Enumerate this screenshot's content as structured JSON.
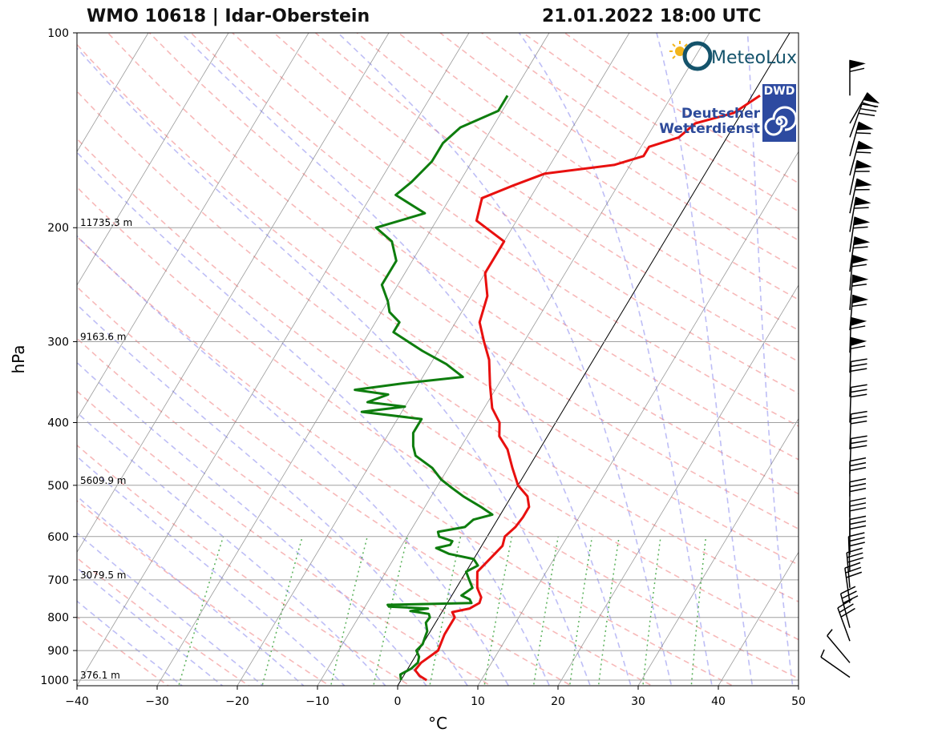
{
  "header": {
    "title_left": "WMO 10618 | Idar-Oberstein",
    "title_right": "21.01.2022 18:00 UTC"
  },
  "logos": {
    "meteolux": "MeteoLux",
    "dwd_abbr": "DWD",
    "dwd_line1": "Deutscher",
    "dwd_line2": "Wetterdienst"
  },
  "colors": {
    "temperature": "#e8100f",
    "dewpoint": "#0e7d0e",
    "dry_adiabat": "#f08080",
    "moist_adiabat": "#8888ee",
    "mixing_ratio": "#2f9e2f",
    "isotherm": "#707070",
    "isobar": "#a0a0a0"
  },
  "chart_data": {
    "type": "line",
    "subtype": "skew-t log-p",
    "xlabel": "°C",
    "ylabel": "hPa",
    "xlim": [
      -40,
      50
    ],
    "ylim": [
      1020,
      100
    ],
    "y_scale": "log",
    "xticks": [
      "−40",
      "−30",
      "−20",
      "−10",
      "0",
      "10",
      "20",
      "30",
      "40",
      "50"
    ],
    "yticks": [
      "100",
      "200",
      "300",
      "400",
      "500",
      "600",
      "700",
      "800",
      "900",
      "1000"
    ],
    "height_labels": [
      {
        "p": 200,
        "text": "11735.3 m"
      },
      {
        "p": 300,
        "text": "9163.6 m"
      },
      {
        "p": 500,
        "text": "5609.9 m"
      },
      {
        "p": 700,
        "text": "3079.5 m"
      },
      {
        "p": 1000,
        "text": "376.1 m"
      }
    ],
    "series": [
      {
        "key": "temperature",
        "points": [
          [
            1000,
            3.2
          ],
          [
            985,
            2.0
          ],
          [
            965,
            1.0
          ],
          [
            940,
            1.2
          ],
          [
            900,
            2.4
          ],
          [
            850,
            2.0
          ],
          [
            800,
            2.0
          ],
          [
            785,
            1.3
          ],
          [
            775,
            3.2
          ],
          [
            760,
            4.0
          ],
          [
            745,
            3.8
          ],
          [
            720,
            2.6
          ],
          [
            700,
            2.0
          ],
          [
            680,
            1.4
          ],
          [
            660,
            1.8
          ],
          [
            640,
            2.2
          ],
          [
            620,
            2.6
          ],
          [
            600,
            2.2
          ],
          [
            580,
            2.8
          ],
          [
            560,
            3.0
          ],
          [
            540,
            3.0
          ],
          [
            520,
            2.0
          ],
          [
            500,
            0.0
          ],
          [
            470,
            -2.0
          ],
          [
            440,
            -4.0
          ],
          [
            420,
            -6.0
          ],
          [
            400,
            -7.0
          ],
          [
            380,
            -9.0
          ],
          [
            350,
            -11.0
          ],
          [
            320,
            -13.0
          ],
          [
            300,
            -15.0
          ],
          [
            280,
            -17.0
          ],
          [
            255,
            -18.0
          ],
          [
            235,
            -20.0
          ],
          [
            210,
            -20.0
          ],
          [
            195,
            -25.0
          ],
          [
            180,
            -26.0
          ],
          [
            172,
            -23.0
          ],
          [
            165,
            -20.0
          ],
          [
            160,
            -12.0
          ],
          [
            155,
            -9.0
          ],
          [
            150,
            -9.0
          ],
          [
            145,
            -6.0
          ],
          [
            138,
            -5.0
          ],
          [
            133,
            -1.0
          ],
          [
            125,
            1.0
          ]
        ]
      },
      {
        "key": "dewpoint",
        "points": [
          [
            1000,
            0.0
          ],
          [
            980,
            -0.5
          ],
          [
            960,
            0.4
          ],
          [
            940,
            0.8
          ],
          [
            920,
            0.5
          ],
          [
            900,
            -0.3
          ],
          [
            880,
            0.0
          ],
          [
            860,
            -0.2
          ],
          [
            840,
            -0.4
          ],
          [
            815,
            -1.2
          ],
          [
            800,
            -1.1
          ],
          [
            790,
            -1.5
          ],
          [
            782,
            -4.0
          ],
          [
            775,
            -2.0
          ],
          [
            770,
            -7.0
          ],
          [
            765,
            -7.3
          ],
          [
            760,
            3.0
          ],
          [
            750,
            2.5
          ],
          [
            740,
            1.2
          ],
          [
            720,
            2.0
          ],
          [
            700,
            1.0
          ],
          [
            680,
            0.0
          ],
          [
            665,
            1.0
          ],
          [
            650,
            0.0
          ],
          [
            638,
            -3.5
          ],
          [
            625,
            -5.5
          ],
          [
            618,
            -4.0
          ],
          [
            610,
            -4.0
          ],
          [
            600,
            -6.0
          ],
          [
            590,
            -6.5
          ],
          [
            580,
            -3.5
          ],
          [
            565,
            -3.0
          ],
          [
            555,
            -1.0
          ],
          [
            540,
            -3.0
          ],
          [
            520,
            -6.0
          ],
          [
            505,
            -8.0
          ],
          [
            490,
            -10.0
          ],
          [
            470,
            -12.0
          ],
          [
            450,
            -15.0
          ],
          [
            435,
            -16.0
          ],
          [
            415,
            -17.0
          ],
          [
            395,
            -17.0
          ],
          [
            385,
            -25.0
          ],
          [
            378,
            -20.0
          ],
          [
            372,
            -25.0
          ],
          [
            362,
            -23.0
          ],
          [
            356,
            -27.5
          ],
          [
            348,
            -22.0
          ],
          [
            340,
            -15.0
          ],
          [
            325,
            -18.0
          ],
          [
            310,
            -22.0
          ],
          [
            290,
            -27.0
          ],
          [
            280,
            -27.0
          ],
          [
            270,
            -29.0
          ],
          [
            260,
            -30.0
          ],
          [
            245,
            -32.0
          ],
          [
            225,
            -32.0
          ],
          [
            210,
            -34.0
          ],
          [
            200,
            -37.0
          ],
          [
            190,
            -32.0
          ],
          [
            178,
            -37.0
          ],
          [
            170,
            -36.0
          ],
          [
            158,
            -35.0
          ],
          [
            148,
            -35.0
          ],
          [
            140,
            -34.0
          ],
          [
            132,
            -30.5
          ],
          [
            125,
            -30.5
          ]
        ]
      }
    ],
    "wind_barbs": [
      {
        "p": 990,
        "kind": "short",
        "dir": 215
      },
      {
        "p": 940,
        "kind": "short",
        "dir": 230
      },
      {
        "p": 870,
        "kind": "full",
        "dir": 250
      },
      {
        "p": 830,
        "kind": "full",
        "dir": 255
      },
      {
        "p": 760,
        "kind": "full",
        "dir": 262
      },
      {
        "p": 720,
        "kind": "full",
        "dir": 265
      },
      {
        "p": 680,
        "kind": "full",
        "dir": 268
      },
      {
        "p": 640,
        "kind": "full",
        "dir": 270
      },
      {
        "p": 600,
        "kind": "full",
        "dir": 270
      },
      {
        "p": 560,
        "kind": "full",
        "dir": 270
      },
      {
        "p": 520,
        "kind": "full",
        "dir": 270
      },
      {
        "p": 480,
        "kind": "full",
        "dir": 272
      },
      {
        "p": 440,
        "kind": "full",
        "dir": 272
      },
      {
        "p": 400,
        "kind": "full",
        "dir": 272
      },
      {
        "p": 365,
        "kind": "full",
        "dir": 272
      },
      {
        "p": 335,
        "kind": "pennant",
        "dir": 272
      },
      {
        "p": 312,
        "kind": "pennant",
        "dir": 272
      },
      {
        "p": 288,
        "kind": "pennant",
        "dir": 275
      },
      {
        "p": 268,
        "kind": "pennant",
        "dir": 275
      },
      {
        "p": 250,
        "kind": "pennant",
        "dir": 275
      },
      {
        "p": 234,
        "kind": "pennant",
        "dir": 278
      },
      {
        "p": 218,
        "kind": "pennant",
        "dir": 278
      },
      {
        "p": 203,
        "kind": "pennant",
        "dir": 280
      },
      {
        "p": 190,
        "kind": "pennant",
        "dir": 282
      },
      {
        "p": 178,
        "kind": "pennant",
        "dir": 282
      },
      {
        "p": 166,
        "kind": "pennant",
        "dir": 285
      },
      {
        "p": 155,
        "kind": "pennant",
        "dir": 285
      },
      {
        "p": 145,
        "kind": "full",
        "dir": 290
      },
      {
        "p": 138,
        "kind": "pennant",
        "dir": 300
      },
      {
        "p": 125,
        "kind": "pennant",
        "dir": 270
      }
    ]
  }
}
